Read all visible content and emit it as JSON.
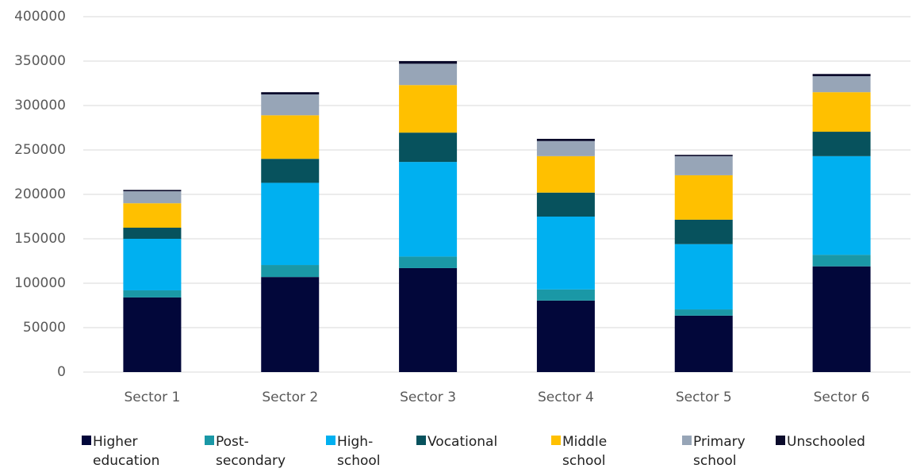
{
  "chart_data": {
    "type": "stacked_bar",
    "categories": [
      "Sector 1",
      "Sector 2",
      "Sector 3",
      "Sector 4",
      "Sector 5",
      "Sector 6"
    ],
    "series": [
      {
        "name": "Higher education",
        "color": "#02073a",
        "values": [
          84000,
          107000,
          117000,
          80500,
          63500,
          119000
        ]
      },
      {
        "name": "Post-secondary",
        "color": "#1a98a6",
        "values": [
          8000,
          13500,
          13000,
          12500,
          7000,
          13000
        ]
      },
      {
        "name": "High-school",
        "color": "#00b0f0",
        "values": [
          58000,
          92500,
          106500,
          82000,
          73500,
          111000
        ]
      },
      {
        "name": "Vocational",
        "color": "#07525d",
        "values": [
          12500,
          27000,
          33000,
          27000,
          27500,
          27500
        ]
      },
      {
        "name": "Middle school",
        "color": "#ffc000",
        "values": [
          27500,
          49000,
          53500,
          41000,
          50000,
          44500
        ]
      },
      {
        "name": "Primary school",
        "color": "#97a5b7",
        "values": [
          13500,
          23500,
          24000,
          17000,
          21500,
          18000
        ]
      },
      {
        "name": "Unschooled",
        "color": "#0b0b2b",
        "values": [
          1500,
          2500,
          3000,
          2500,
          1500,
          2500
        ]
      }
    ],
    "ylim": [
      0,
      400000
    ],
    "yticks": [
      0,
      50000,
      100000,
      150000,
      200000,
      250000,
      300000,
      350000,
      400000
    ],
    "grid": true
  }
}
